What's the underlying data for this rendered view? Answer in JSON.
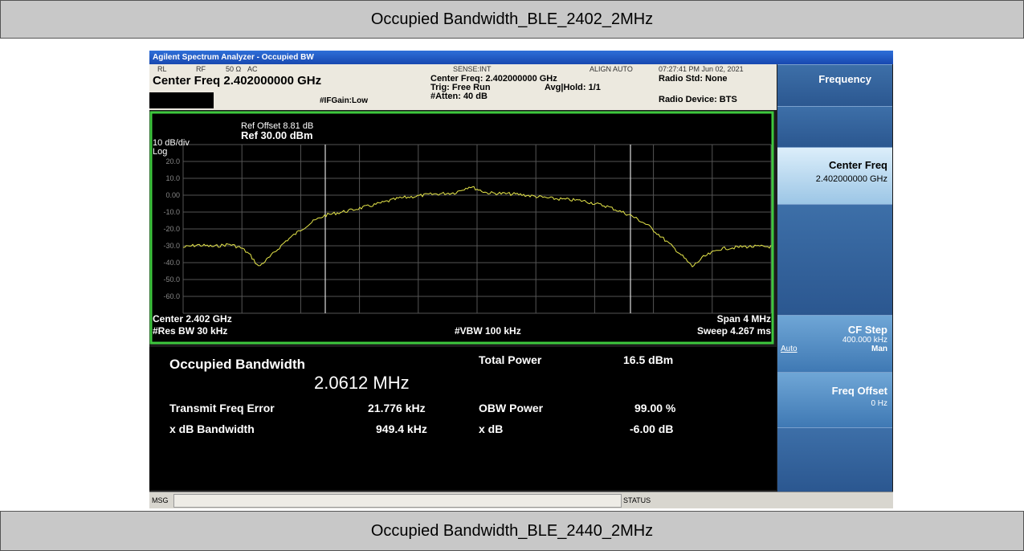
{
  "header": {
    "title": "Occupied Bandwidth_BLE_2402_2MHz"
  },
  "footer": {
    "title": "Occupied Bandwidth_BLE_2440_2MHz"
  },
  "analyzer": {
    "window_title": "Agilent Spectrum Analyzer - Occupied BW",
    "status": {
      "rl": "RL",
      "rf": "RF",
      "impedance": "50 Ω",
      "coupling": "AC",
      "sense": "SENSE:INT",
      "align": "ALIGN AUTO",
      "datetime": "07:27:41 PM Jun 02, 2021",
      "center_freq": "Center Freq 2.402000000 GHz",
      "if_gain": "#IFGain:Low",
      "center_freq_short": "Center Freq: 2.402000000 GHz",
      "trig": "Trig: Free Run",
      "avg_hold": "Avg|Hold: 1/1",
      "atten": "#Atten: 40 dB",
      "radio_std": "Radio Std: None",
      "radio_device": "Radio Device: BTS"
    },
    "graph": {
      "ref_offset": "Ref Offset 8.81 dB",
      "scale": "10 dB/div",
      "ref_level": "Ref 30.00 dBm",
      "log": "Log",
      "y_labels": [
        "20.0",
        "10.0",
        "0.00",
        "-10.0",
        "-20.0",
        "-30.0",
        "-40.0",
        "-50.0",
        "-60.0"
      ],
      "center": "Center 2.402 GHz",
      "span": "Span 4 MHz",
      "res_bw": "#Res BW 30 kHz",
      "vbw": "#VBW 100 kHz",
      "sweep": "Sweep 4.267 ms"
    },
    "results": {
      "obw_label": "Occupied Bandwidth",
      "obw_value": "2.0612 MHz",
      "total_power_label": "Total Power",
      "total_power_value": "16.5 dBm",
      "tx_freq_error_label": "Transmit Freq Error",
      "tx_freq_error_value": "21.776 kHz",
      "obw_power_label": "OBW Power",
      "obw_power_value": "99.00 %",
      "xdb_bw_label": "x dB Bandwidth",
      "xdb_bw_value": "949.4 kHz",
      "xdb_label": "x dB",
      "xdb_value": "-6.00 dB"
    },
    "softkeys": {
      "menu": "Frequency",
      "center_freq": "Center Freq",
      "center_freq_value": "2.402000000 GHz",
      "cf_step": "CF Step",
      "cf_step_value": "400.000 kHz",
      "auto": "Auto",
      "man": "Man",
      "freq_offset": "Freq Offset",
      "freq_offset_value": "0 Hz"
    },
    "bottom": {
      "msg": "MSG",
      "status": "STATUS"
    }
  }
}
